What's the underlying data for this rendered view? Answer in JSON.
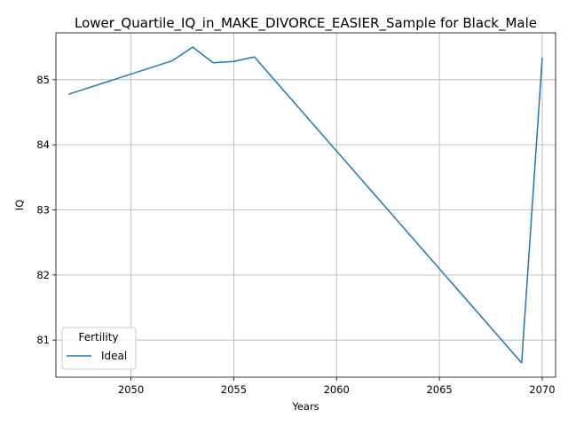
{
  "chart_data": {
    "type": "line",
    "title": "Lower_Quartile_IQ_in_MAKE_DIVORCE_EASIER_Sample for Black_Male",
    "xlabel": "Years",
    "ylabel": "IQ",
    "xlim": [
      2046.35,
      2070.65
    ],
    "ylim": [
      80.43,
      85.72
    ],
    "xticks": [
      2050,
      2055,
      2060,
      2065,
      2070
    ],
    "yticks": [
      81,
      82,
      83,
      84,
      85
    ],
    "grid": true,
    "legend": {
      "title": "Fertility",
      "placement": "lower-left"
    },
    "series": [
      {
        "name": "Ideal",
        "color": "#1f77b4",
        "x": [
          2047,
          2052,
          2053,
          2054,
          2055,
          2056,
          2069,
          2070
        ],
        "y": [
          84.78,
          85.29,
          85.5,
          85.26,
          85.28,
          85.35,
          80.65,
          85.33
        ]
      }
    ]
  }
}
